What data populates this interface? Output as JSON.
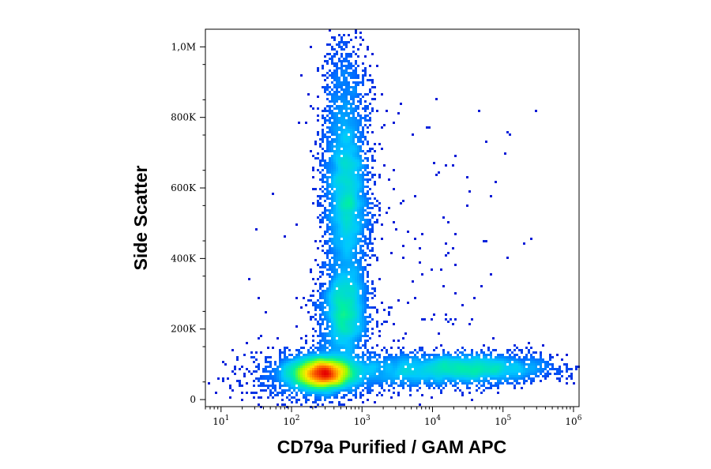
{
  "chart_data": {
    "type": "heatmap",
    "subtype": "flow-cytometry-density-dot-plot",
    "title": "",
    "xlabel": "CD79a Purified / GAM APC",
    "ylabel": "Side Scatter",
    "x_scale": "log",
    "xlim": [
      6,
      1200000
    ],
    "ylim": [
      -20000,
      1050000
    ],
    "grid": false,
    "legend": "none",
    "x_ticks": [
      {
        "value": 10,
        "base": "10",
        "exp": "1"
      },
      {
        "value": 100,
        "base": "10",
        "exp": "2"
      },
      {
        "value": 1000,
        "base": "10",
        "exp": "3"
      },
      {
        "value": 10000,
        "base": "10",
        "exp": "4"
      },
      {
        "value": 100000,
        "base": "10",
        "exp": "5"
      },
      {
        "value": 1000000,
        "base": "10",
        "exp": "6"
      }
    ],
    "y_ticks": [
      {
        "value": 0,
        "label": "0"
      },
      {
        "value": 200000,
        "label": "200K"
      },
      {
        "value": 400000,
        "label": "400K"
      },
      {
        "value": 600000,
        "label": "600K"
      },
      {
        "value": 800000,
        "label": "800K"
      },
      {
        "value": 1000000,
        "label": "1,0M"
      }
    ],
    "populations": [
      {
        "log_x": 2.45,
        "y": 75000,
        "sx": 0.22,
        "sy": 22000,
        "weight": 0.26
      },
      {
        "log_x": 2.3,
        "y": 70000,
        "sx": 0.45,
        "sy": 38000,
        "weight": 0.08
      },
      {
        "log_x": 2.75,
        "y": 250000,
        "sx": 0.17,
        "sy": 65000,
        "weight": 0.14
      },
      {
        "log_x": 2.78,
        "y": 560000,
        "sx": 0.16,
        "sy": 120000,
        "weight": 0.18
      },
      {
        "log_x": 2.75,
        "y": 820000,
        "sx": 0.17,
        "sy": 110000,
        "weight": 0.06
      },
      {
        "log_x": 4.6,
        "y": 88000,
        "sx": 0.55,
        "sy": 22000,
        "weight": 0.13
      },
      {
        "log_x": 3.5,
        "y": 82000,
        "sx": 0.6,
        "sy": 25000,
        "weight": 0.07
      },
      {
        "log_x": 3.6,
        "y": 380000,
        "sx": 0.8,
        "sy": 260000,
        "weight": 0.012
      }
    ],
    "colormap": [
      "#0b00c8",
      "#0064ff",
      "#00c8ff",
      "#00f0a0",
      "#96ff00",
      "#ffe600",
      "#ff7800",
      "#e60000"
    ]
  }
}
